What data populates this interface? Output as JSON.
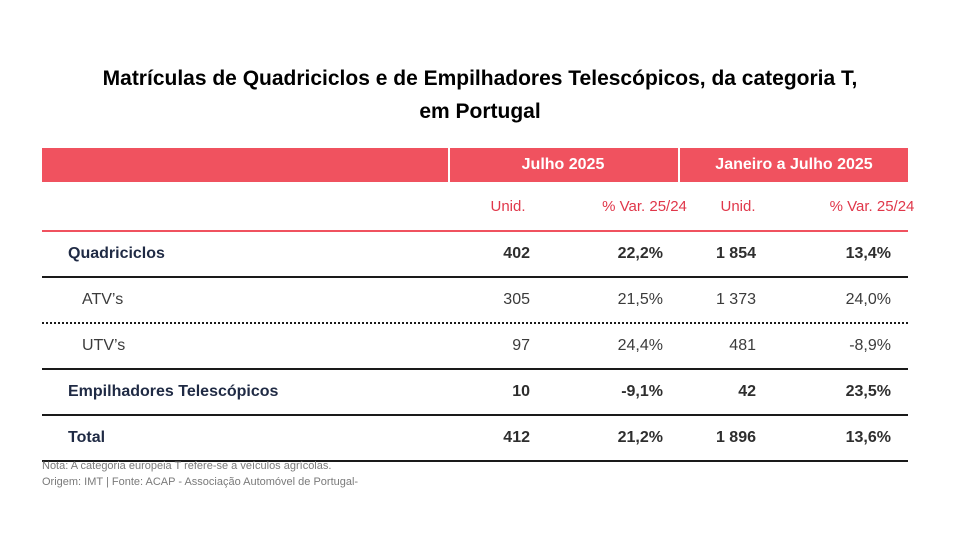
{
  "title": {
    "line1": "Matrículas de Quadriciclos e de Empilhadores Telescópicos, da categoria T,",
    "line2": "em Portugal"
  },
  "header": {
    "group1": "Julho 2025",
    "group2": "Janeiro a Julho 2025",
    "unid1": "Unid.",
    "var1": "% Var. 25/24",
    "unid2": "Unid.",
    "var2": "% Var. 25/24"
  },
  "rows": [
    {
      "label": "Quadriciclos",
      "u1": "402",
      "v1": "22,2%",
      "u2": "1 854",
      "v2": "13,4%"
    },
    {
      "label": "ATV’s",
      "u1": "305",
      "v1": "21,5%",
      "u2": "1 373",
      "v2": "24,0%"
    },
    {
      "label": "UTV’s",
      "u1": "97",
      "v1": "24,4%",
      "u2": "481",
      "v2": "-8,9%"
    },
    {
      "label": "Empilhadores Telescópicos",
      "u1": "10",
      "v1": "-9,1%",
      "u2": "42",
      "v2": "23,5%"
    },
    {
      "label": "Total",
      "u1": "412",
      "v1": "21,2%",
      "u2": "1 896",
      "v2": "13,6%"
    }
  ],
  "notes": {
    "note": "Nota: A categoria europeia T refere-se a veículos agrícolas.",
    "source": "Origem: IMT | Fonte: ACAP - Associação Automóvel de Portugal-"
  },
  "colors": {
    "header_bg": "#f0525f",
    "header_text": "#ffffff",
    "subheader_text": "#e0374a"
  }
}
